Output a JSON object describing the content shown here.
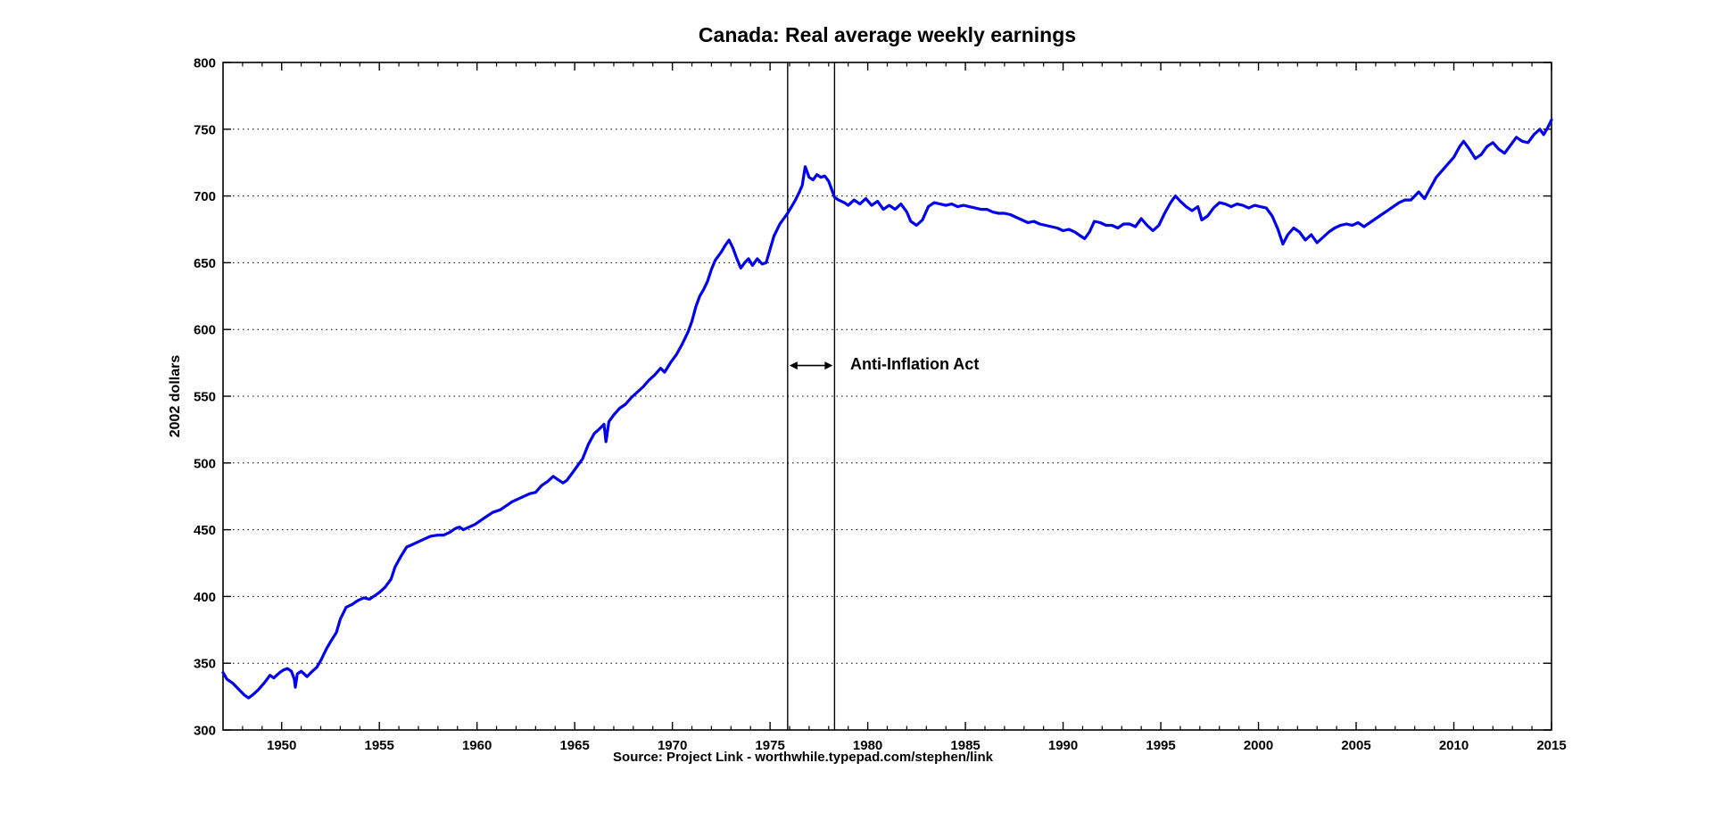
{
  "figure": {
    "title": "Canada: Real average weekly earnings",
    "y_axis_label": "2002 dollars",
    "source_label": "Source: Project Link - worthwhile.typepad.com/stephen/link",
    "annotation_label": "Anti-Inflation Act"
  },
  "chart_data": {
    "type": "line",
    "title": "Canada: Real average weekly earnings",
    "xlabel": "Source: Project Link - worthwhile.typepad.com/stephen/link",
    "ylabel": "2002 dollars",
    "xlim": [
      1947,
      2015
    ],
    "ylim": [
      300,
      800
    ],
    "x_ticks": [
      1950,
      1955,
      1960,
      1965,
      1970,
      1975,
      1980,
      1985,
      1990,
      1995,
      2000,
      2005,
      2010,
      2015
    ],
    "x_minor_tick_interval": 1,
    "y_ticks": [
      300,
      350,
      400,
      450,
      500,
      550,
      600,
      650,
      700,
      750,
      800
    ],
    "grid": "horizontal-dotted",
    "legend": "none",
    "line_color": "#0000EE",
    "axis_color": "#000000",
    "background_color": "#FFFFFF",
    "annotation": {
      "label": "Anti-Inflation Act",
      "x_start": 1975.9,
      "x_end": 1978.3,
      "arrow_value": 573
    },
    "series": [
      {
        "name": "Real average weekly earnings (2002 dollars)",
        "points": [
          [
            1947.0,
            343
          ],
          [
            1947.2,
            338
          ],
          [
            1947.5,
            335
          ],
          [
            1947.9,
            329
          ],
          [
            1948.1,
            326
          ],
          [
            1948.3,
            324
          ],
          [
            1948.5,
            326
          ],
          [
            1948.8,
            330
          ],
          [
            1949.1,
            335
          ],
          [
            1949.4,
            341
          ],
          [
            1949.6,
            339
          ],
          [
            1949.9,
            343
          ],
          [
            1950.1,
            345
          ],
          [
            1950.3,
            346
          ],
          [
            1950.5,
            344
          ],
          [
            1950.65,
            338
          ],
          [
            1950.7,
            332
          ],
          [
            1950.8,
            342
          ],
          [
            1951.0,
            344
          ],
          [
            1951.3,
            340
          ],
          [
            1951.5,
            343
          ],
          [
            1951.8,
            347
          ],
          [
            1952.0,
            352
          ],
          [
            1952.3,
            361
          ],
          [
            1952.5,
            366
          ],
          [
            1952.8,
            373
          ],
          [
            1953.0,
            383
          ],
          [
            1953.3,
            392
          ],
          [
            1953.6,
            394
          ],
          [
            1953.9,
            397
          ],
          [
            1954.2,
            399
          ],
          [
            1954.5,
            398
          ],
          [
            1954.8,
            401
          ],
          [
            1955.0,
            403
          ],
          [
            1955.3,
            407
          ],
          [
            1955.6,
            413
          ],
          [
            1955.8,
            422
          ],
          [
            1956.1,
            430
          ],
          [
            1956.4,
            437
          ],
          [
            1956.7,
            439
          ],
          [
            1957.0,
            441
          ],
          [
            1957.3,
            443
          ],
          [
            1957.6,
            445
          ],
          [
            1958.0,
            446
          ],
          [
            1958.3,
            446
          ],
          [
            1958.6,
            448
          ],
          [
            1958.9,
            451
          ],
          [
            1959.1,
            452
          ],
          [
            1959.3,
            450
          ],
          [
            1959.6,
            452
          ],
          [
            1959.9,
            454
          ],
          [
            1960.2,
            457
          ],
          [
            1960.5,
            460
          ],
          [
            1960.8,
            463
          ],
          [
            1961.2,
            465
          ],
          [
            1961.5,
            468
          ],
          [
            1961.8,
            471
          ],
          [
            1962.1,
            473
          ],
          [
            1962.4,
            475
          ],
          [
            1962.7,
            477
          ],
          [
            1963.0,
            478
          ],
          [
            1963.3,
            483
          ],
          [
            1963.6,
            486
          ],
          [
            1963.9,
            490
          ],
          [
            1964.1,
            488
          ],
          [
            1964.4,
            485
          ],
          [
            1964.6,
            487
          ],
          [
            1964.9,
            493
          ],
          [
            1965.1,
            497
          ],
          [
            1965.4,
            503
          ],
          [
            1965.7,
            514
          ],
          [
            1966.0,
            522
          ],
          [
            1966.3,
            526
          ],
          [
            1966.5,
            529
          ],
          [
            1966.6,
            516
          ],
          [
            1966.75,
            531
          ],
          [
            1967.0,
            536
          ],
          [
            1967.3,
            541
          ],
          [
            1967.6,
            544
          ],
          [
            1967.9,
            549
          ],
          [
            1968.2,
            553
          ],
          [
            1968.5,
            557
          ],
          [
            1968.8,
            562
          ],
          [
            1969.1,
            566
          ],
          [
            1969.4,
            571
          ],
          [
            1969.6,
            568
          ],
          [
            1969.9,
            575
          ],
          [
            1970.2,
            581
          ],
          [
            1970.5,
            589
          ],
          [
            1970.8,
            598
          ],
          [
            1971.0,
            606
          ],
          [
            1971.2,
            617
          ],
          [
            1971.4,
            625
          ],
          [
            1971.6,
            630
          ],
          [
            1971.8,
            636
          ],
          [
            1972.0,
            645
          ],
          [
            1972.2,
            652
          ],
          [
            1972.5,
            658
          ],
          [
            1972.7,
            663
          ],
          [
            1972.9,
            667
          ],
          [
            1973.1,
            661
          ],
          [
            1973.3,
            653
          ],
          [
            1973.5,
            646
          ],
          [
            1973.7,
            650
          ],
          [
            1973.9,
            653
          ],
          [
            1974.1,
            648
          ],
          [
            1974.35,
            653
          ],
          [
            1974.6,
            649
          ],
          [
            1974.8,
            650
          ],
          [
            1975.0,
            660
          ],
          [
            1975.2,
            670
          ],
          [
            1975.5,
            679
          ],
          [
            1975.7,
            683
          ],
          [
            1975.9,
            687
          ],
          [
            1976.1,
            692
          ],
          [
            1976.3,
            697
          ],
          [
            1976.5,
            703
          ],
          [
            1976.65,
            708
          ],
          [
            1976.8,
            722
          ],
          [
            1977.0,
            714
          ],
          [
            1977.2,
            712
          ],
          [
            1977.4,
            716
          ],
          [
            1977.6,
            714
          ],
          [
            1977.8,
            715
          ],
          [
            1978.0,
            711
          ],
          [
            1978.15,
            705
          ],
          [
            1978.3,
            699
          ],
          [
            1978.5,
            697
          ],
          [
            1978.8,
            695
          ],
          [
            1979.0,
            693
          ],
          [
            1979.3,
            697
          ],
          [
            1979.6,
            694
          ],
          [
            1979.9,
            698
          ],
          [
            1980.2,
            693
          ],
          [
            1980.5,
            696
          ],
          [
            1980.8,
            690
          ],
          [
            1981.1,
            693
          ],
          [
            1981.4,
            690
          ],
          [
            1981.7,
            694
          ],
          [
            1982.0,
            688
          ],
          [
            1982.2,
            681
          ],
          [
            1982.5,
            678
          ],
          [
            1982.8,
            682
          ],
          [
            1983.1,
            692
          ],
          [
            1983.4,
            695
          ],
          [
            1983.7,
            694
          ],
          [
            1984.0,
            693
          ],
          [
            1984.3,
            694
          ],
          [
            1984.6,
            692
          ],
          [
            1984.9,
            693
          ],
          [
            1985.2,
            692
          ],
          [
            1985.5,
            691
          ],
          [
            1985.8,
            690
          ],
          [
            1986.1,
            690
          ],
          [
            1986.4,
            688
          ],
          [
            1986.7,
            687
          ],
          [
            1987.0,
            687
          ],
          [
            1987.3,
            686
          ],
          [
            1987.6,
            684
          ],
          [
            1987.9,
            682
          ],
          [
            1988.2,
            680
          ],
          [
            1988.5,
            681
          ],
          [
            1988.8,
            679
          ],
          [
            1989.1,
            678
          ],
          [
            1989.4,
            677
          ],
          [
            1989.7,
            676
          ],
          [
            1990.0,
            674
          ],
          [
            1990.3,
            675
          ],
          [
            1990.6,
            673
          ],
          [
            1990.9,
            670
          ],
          [
            1991.1,
            668
          ],
          [
            1991.35,
            673
          ],
          [
            1991.6,
            681
          ],
          [
            1991.9,
            680
          ],
          [
            1992.2,
            678
          ],
          [
            1992.5,
            678
          ],
          [
            1992.8,
            676
          ],
          [
            1993.1,
            679
          ],
          [
            1993.4,
            679
          ],
          [
            1993.7,
            677
          ],
          [
            1994.0,
            683
          ],
          [
            1994.3,
            678
          ],
          [
            1994.6,
            674
          ],
          [
            1994.9,
            678
          ],
          [
            1995.2,
            687
          ],
          [
            1995.5,
            695
          ],
          [
            1995.75,
            700
          ],
          [
            1996.0,
            696
          ],
          [
            1996.3,
            692
          ],
          [
            1996.6,
            689
          ],
          [
            1996.9,
            692
          ],
          [
            1997.1,
            682
          ],
          [
            1997.4,
            685
          ],
          [
            1997.7,
            691
          ],
          [
            1998.0,
            695
          ],
          [
            1998.3,
            694
          ],
          [
            1998.6,
            692
          ],
          [
            1998.9,
            694
          ],
          [
            1999.2,
            693
          ],
          [
            1999.5,
            691
          ],
          [
            1999.8,
            693
          ],
          [
            2000.1,
            692
          ],
          [
            2000.4,
            691
          ],
          [
            2000.7,
            685
          ],
          [
            2001.0,
            675
          ],
          [
            2001.25,
            664
          ],
          [
            2001.5,
            671
          ],
          [
            2001.8,
            676
          ],
          [
            2002.1,
            673
          ],
          [
            2002.4,
            667
          ],
          [
            2002.7,
            671
          ],
          [
            2003.0,
            665
          ],
          [
            2003.3,
            669
          ],
          [
            2003.6,
            673
          ],
          [
            2003.9,
            676
          ],
          [
            2004.2,
            678
          ],
          [
            2004.5,
            679
          ],
          [
            2004.8,
            678
          ],
          [
            2005.1,
            680
          ],
          [
            2005.4,
            677
          ],
          [
            2005.7,
            680
          ],
          [
            2006.0,
            683
          ],
          [
            2006.3,
            686
          ],
          [
            2006.6,
            689
          ],
          [
            2006.9,
            692
          ],
          [
            2007.2,
            695
          ],
          [
            2007.5,
            697
          ],
          [
            2007.8,
            697
          ],
          [
            2008.0,
            700
          ],
          [
            2008.2,
            703
          ],
          [
            2008.5,
            698
          ],
          [
            2008.8,
            706
          ],
          [
            2009.1,
            714
          ],
          [
            2009.4,
            719
          ],
          [
            2009.7,
            724
          ],
          [
            2010.0,
            729
          ],
          [
            2010.3,
            737
          ],
          [
            2010.5,
            741
          ],
          [
            2010.8,
            735
          ],
          [
            2011.1,
            728
          ],
          [
            2011.4,
            731
          ],
          [
            2011.7,
            737
          ],
          [
            2012.0,
            740
          ],
          [
            2012.3,
            735
          ],
          [
            2012.6,
            732
          ],
          [
            2012.9,
            738
          ],
          [
            2013.2,
            744
          ],
          [
            2013.5,
            741
          ],
          [
            2013.8,
            740
          ],
          [
            2014.1,
            746
          ],
          [
            2014.4,
            750
          ],
          [
            2014.6,
            746
          ],
          [
            2014.8,
            751
          ],
          [
            2015.0,
            757
          ]
        ]
      }
    ]
  }
}
